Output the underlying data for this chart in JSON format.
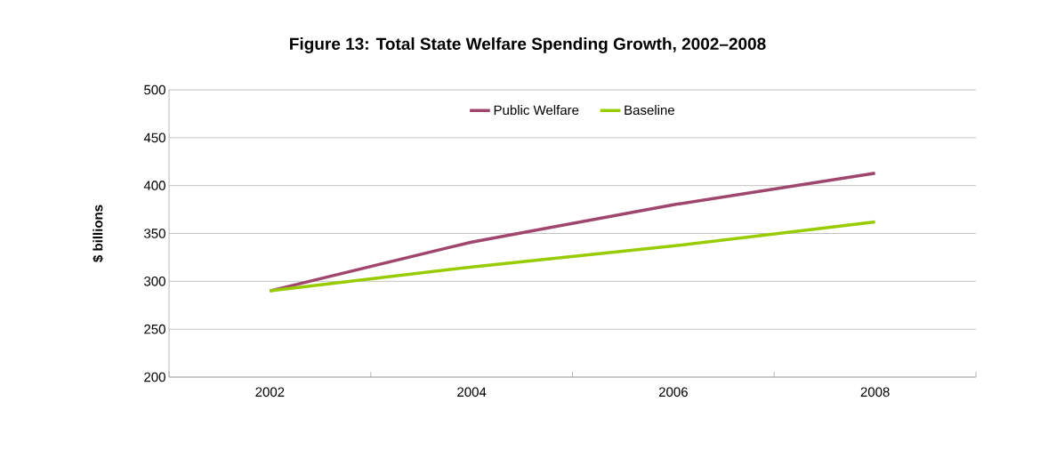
{
  "chart_data": {
    "type": "line",
    "title": "Figure 13: Total State Welfare Spending Growth, 2002–2008",
    "ylabel": "$ billions",
    "categories": [
      "2002",
      "2004",
      "2006",
      "2008"
    ],
    "series": [
      {
        "name": "Public Welfare",
        "color": "#a0456e",
        "values": [
          290,
          341,
          380,
          413
        ]
      },
      {
        "name": "Baseline",
        "color": "#99cc00",
        "values": [
          290,
          315,
          337,
          362
        ]
      }
    ],
    "ylim": [
      200,
      500
    ],
    "yticks": [
      200,
      250,
      300,
      350,
      400,
      450,
      500
    ],
    "grid": "y",
    "legend": "top",
    "marker": "none",
    "line_style": "solid"
  }
}
